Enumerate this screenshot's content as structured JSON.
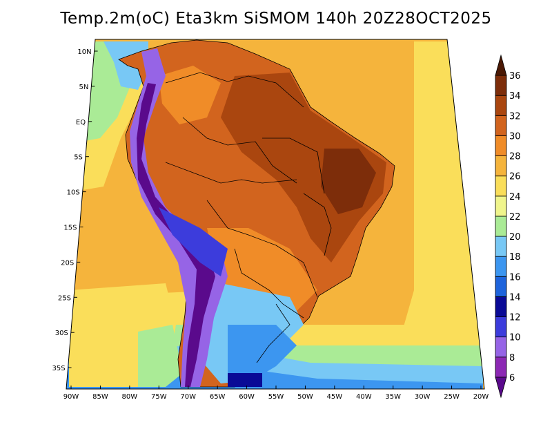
{
  "title": "Temp.2m(oC) Eta3km SiSMOM 140h 20Z28OCT2025",
  "lat_labels": [
    "10N",
    "5N",
    "EQ",
    "5S",
    "10S",
    "15S",
    "20S",
    "25S",
    "30S",
    "35S"
  ],
  "lon_labels": [
    "90W",
    "85W",
    "80W",
    "75W",
    "70W",
    "65W",
    "60W",
    "55W",
    "50W",
    "45W",
    "40W",
    "35W",
    "30W",
    "25W",
    "20W"
  ],
  "colorbar": {
    "labels": [
      "6",
      "8",
      "10",
      "12",
      "14",
      "16",
      "18",
      "20",
      "22",
      "24",
      "26",
      "28",
      "30",
      "32",
      "34",
      "36"
    ],
    "colors": [
      "#5a0a8c",
      "#8c28b4",
      "#9664e6",
      "#3c3cdc",
      "#0a0a96",
      "#1e64dc",
      "#3c96f0",
      "#78c8f5",
      "#aaeb96",
      "#f0f58c",
      "#fade5a",
      "#f5b43c",
      "#f08c28",
      "#d2641e",
      "#aa460f",
      "#7d2d0a",
      "#4b1905"
    ]
  },
  "colors": {
    "ocean_warm": "#f5b43c",
    "ocean_mid": "#fade5a",
    "ocean_cool": "#aaeb96",
    "ocean_cold": "#78c8f5",
    "land_hot": "#d2641e",
    "land_veryhot": "#aa460f",
    "andes": "#9664e6",
    "south_cool": "#3c96f0"
  }
}
